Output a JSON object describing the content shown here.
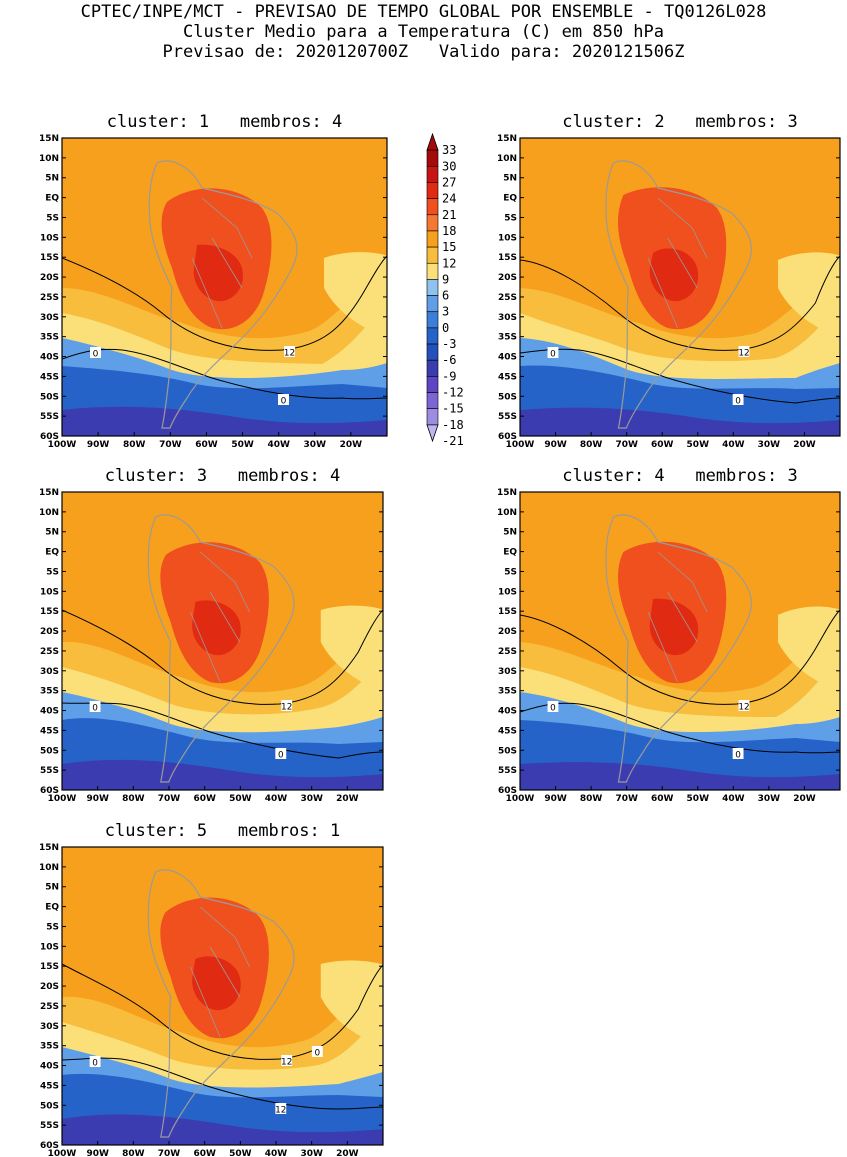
{
  "header": {
    "line1": "CPTEC/INPE/MCT - PREVISAO DE TEMPO GLOBAL POR ENSEMBLE - TQ0126L028",
    "line2": "Cluster Medio para a Temperatura (C) em 850 hPa",
    "line3": "Previsao de: 2020120700Z   Valido para: 2020121506Z"
  },
  "axes": {
    "lat_labels": [
      "15N",
      "10N",
      "5N",
      "EQ",
      "5S",
      "10S",
      "15S",
      "20S",
      "25S",
      "30S",
      "35S",
      "40S",
      "45S",
      "50S",
      "55S",
      "60S"
    ],
    "lon_labels": [
      "100W",
      "90W",
      "80W",
      "70W",
      "60W",
      "50W",
      "40W",
      "30W",
      "20W"
    ]
  },
  "colorbar": {
    "labels": [
      "33",
      "30",
      "27",
      "24",
      "21",
      "18",
      "15",
      "12",
      "9",
      "6",
      "3",
      "0",
      "-3",
      "-6",
      "-9",
      "-12",
      "-15",
      "-18",
      "-21"
    ],
    "colors": [
      "#a50a0a",
      "#c81414",
      "#e02b12",
      "#f0501e",
      "#f57832",
      "#f7a01e",
      "#f8bd3c",
      "#fbe07a",
      "#8ec3ef",
      "#5e9fe8",
      "#3b7fd9",
      "#2663c8",
      "#2350bb",
      "#3b3cb0",
      "#5d46c3",
      "#7c66d4",
      "#9c8ce2",
      "#c0b6ef"
    ]
  },
  "colors": {
    "warm": "#f7a01e",
    "hot": "#f0501e",
    "hottest": "#e02b12",
    "mild": "#f8bd3c",
    "cool": "#fbe07a",
    "cold": "#5e9fe8",
    "colder": "#2663c8",
    "coldest": "#3b3cb0"
  },
  "panels": [
    {
      "title": "cluster: 1   membros: 4",
      "contour_labels": [
        "0",
        "12",
        "0"
      ]
    },
    {
      "title": "cluster: 2   membros: 3",
      "contour_labels": [
        "0",
        "12",
        "0"
      ]
    },
    {
      "title": "cluster: 3   membros: 4",
      "contour_labels": [
        "0",
        "12",
        "0"
      ]
    },
    {
      "title": "cluster: 4   membros: 3",
      "contour_labels": [
        "0",
        "12",
        "0"
      ]
    },
    {
      "title": "cluster: 5   membros: 1",
      "contour_labels": [
        "0",
        "12",
        "12",
        "0"
      ]
    }
  ]
}
